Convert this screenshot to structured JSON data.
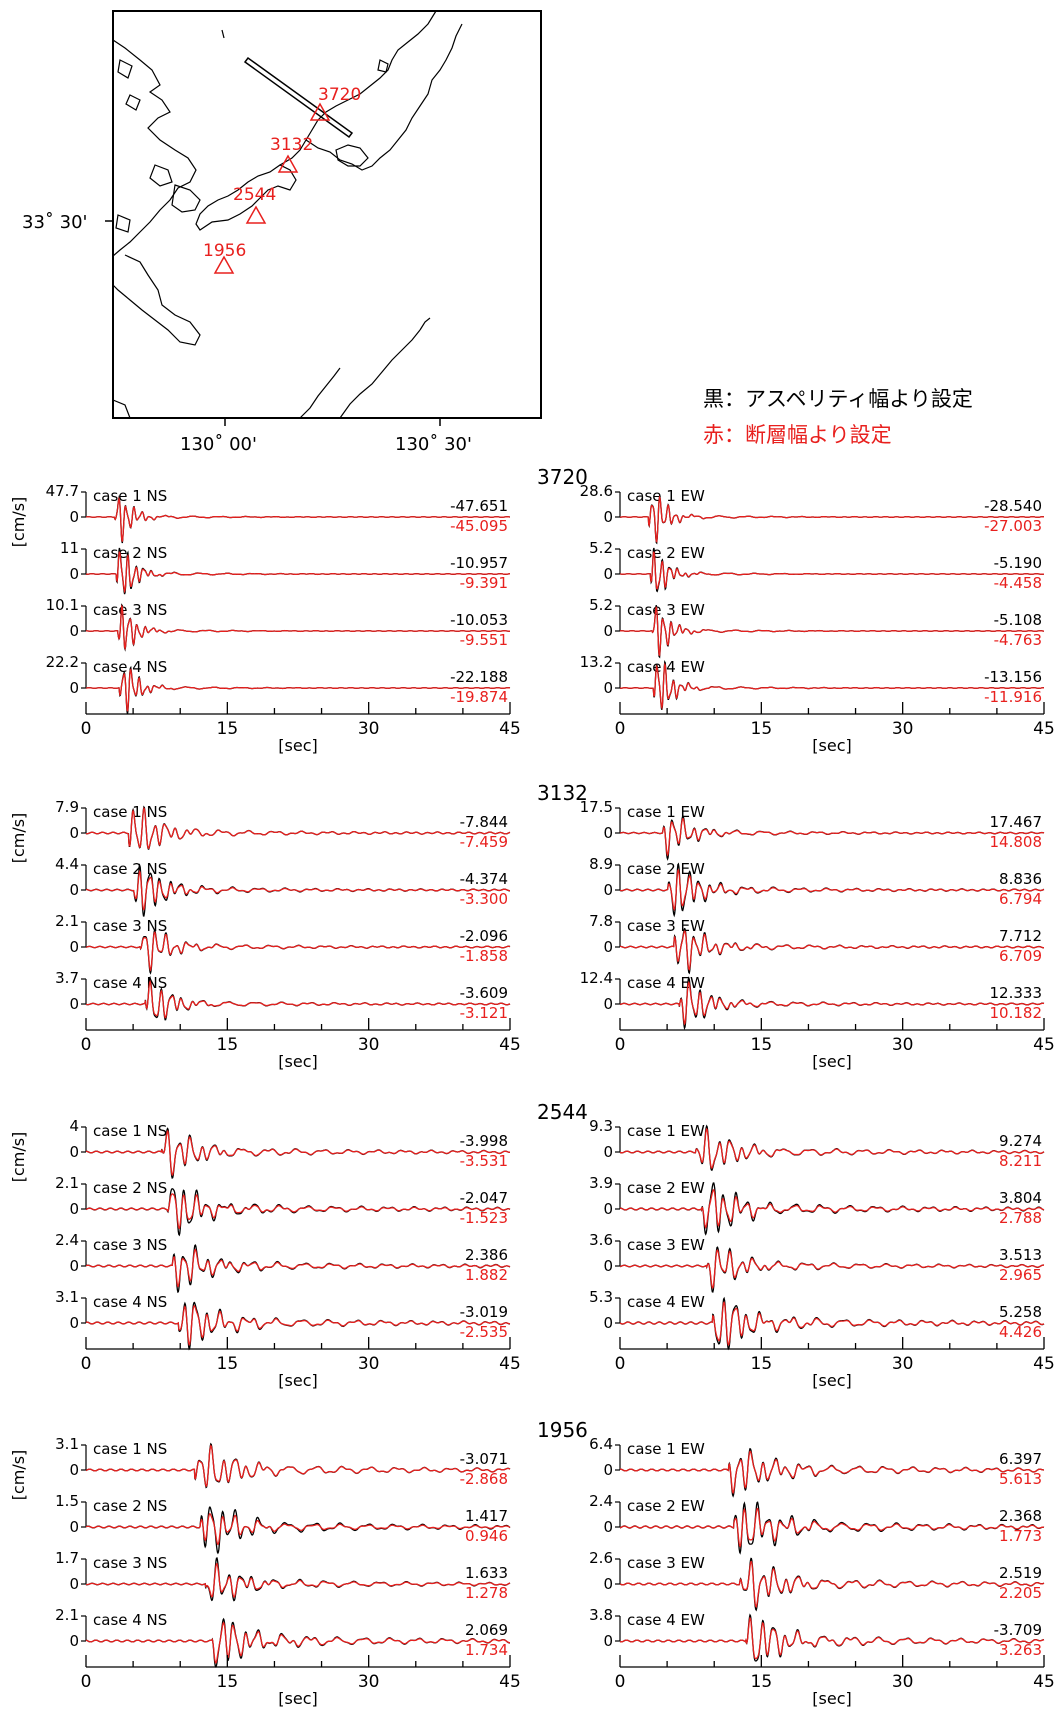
{
  "map": {
    "lat_label": "33˚ 30'",
    "lon_labels": [
      "130˚ 00'",
      "130˚ 30'"
    ],
    "stations": [
      {
        "name": "3720"
      },
      {
        "name": "3132"
      },
      {
        "name": "2544"
      },
      {
        "name": "1956"
      }
    ]
  },
  "legend": {
    "black": "黒：アスペリティ幅より設定",
    "red": "赤：断層幅より設定",
    "black_color": "#000000",
    "red_color": "#e8201e"
  },
  "axis": {
    "ylabel": "[cm/s]",
    "xlabel": "[sec]",
    "xticks": [
      "0",
      "15",
      "30",
      "45"
    ],
    "xlim": [
      0,
      45
    ]
  },
  "chart_data": [
    {
      "type": "line",
      "station": "3720",
      "component": "NS",
      "traces": [
        {
          "case": "case 1 NS",
          "scale": "47.7",
          "black_peak": "-47.651",
          "red_peak": "-45.095"
        },
        {
          "case": "case 2 NS",
          "scale": "11",
          "black_peak": "-10.957",
          "red_peak": "-9.391"
        },
        {
          "case": "case 3 NS",
          "scale": "10.1",
          "black_peak": "-10.053",
          "red_peak": "-9.551"
        },
        {
          "case": "case 4 NS",
          "scale": "22.2",
          "black_peak": "-22.188",
          "red_peak": "-19.874"
        }
      ]
    },
    {
      "type": "line",
      "station": "3720",
      "component": "EW",
      "traces": [
        {
          "case": "case 1 EW",
          "scale": "28.6",
          "black_peak": "-28.540",
          "red_peak": "-27.003"
        },
        {
          "case": "case 2 EW",
          "scale": "5.2",
          "black_peak": "-5.190",
          "red_peak": "-4.458"
        },
        {
          "case": "case 3 EW",
          "scale": "5.2",
          "black_peak": "-5.108",
          "red_peak": "-4.763"
        },
        {
          "case": "case 4 EW",
          "scale": "13.2",
          "black_peak": "-13.156",
          "red_peak": "-11.916"
        }
      ]
    },
    {
      "type": "line",
      "station": "3132",
      "component": "NS",
      "traces": [
        {
          "case": "case 1 NS",
          "scale": "7.9",
          "black_peak": "-7.844",
          "red_peak": "-7.459"
        },
        {
          "case": "case 2 NS",
          "scale": "4.4",
          "black_peak": "-4.374",
          "red_peak": "-3.300"
        },
        {
          "case": "case 3 NS",
          "scale": "2.1",
          "black_peak": "-2.096",
          "red_peak": "-1.858"
        },
        {
          "case": "case 4 NS",
          "scale": "3.7",
          "black_peak": "-3.609",
          "red_peak": "-3.121"
        }
      ]
    },
    {
      "type": "line",
      "station": "3132",
      "component": "EW",
      "traces": [
        {
          "case": "case 1 EW",
          "scale": "17.5",
          "black_peak": "17.467",
          "red_peak": "14.808"
        },
        {
          "case": "case 2 EW",
          "scale": "8.9",
          "black_peak": "8.836",
          "red_peak": "6.794"
        },
        {
          "case": "case 3 EW",
          "scale": "7.8",
          "black_peak": "7.712",
          "red_peak": "6.709"
        },
        {
          "case": "case 4 EW",
          "scale": "12.4",
          "black_peak": "12.333",
          "red_peak": "10.182"
        }
      ]
    },
    {
      "type": "line",
      "station": "2544",
      "component": "NS",
      "traces": [
        {
          "case": "case 1 NS",
          "scale": "4",
          "black_peak": "-3.998",
          "red_peak": "-3.531"
        },
        {
          "case": "case 2 NS",
          "scale": "2.1",
          "black_peak": "-2.047",
          "red_peak": "-1.523"
        },
        {
          "case": "case 3 NS",
          "scale": "2.4",
          "black_peak": "2.386",
          "red_peak": "1.882"
        },
        {
          "case": "case 4 NS",
          "scale": "3.1",
          "black_peak": "-3.019",
          "red_peak": "-2.535"
        }
      ]
    },
    {
      "type": "line",
      "station": "2544",
      "component": "EW",
      "traces": [
        {
          "case": "case 1 EW",
          "scale": "9.3",
          "black_peak": "9.274",
          "red_peak": "8.211"
        },
        {
          "case": "case 2 EW",
          "scale": "3.9",
          "black_peak": "3.804",
          "red_peak": "2.788"
        },
        {
          "case": "case 3 EW",
          "scale": "3.6",
          "black_peak": "3.513",
          "red_peak": "2.965"
        },
        {
          "case": "case 4 EW",
          "scale": "5.3",
          "black_peak": "5.258",
          "red_peak": "4.426"
        }
      ]
    },
    {
      "type": "line",
      "station": "1956",
      "component": "NS",
      "traces": [
        {
          "case": "case 1 NS",
          "scale": "3.1",
          "black_peak": "-3.071",
          "red_peak": "-2.868"
        },
        {
          "case": "case 2 NS",
          "scale": "1.5",
          "black_peak": "1.417",
          "red_peak": "0.946"
        },
        {
          "case": "case 3 NS",
          "scale": "1.7",
          "black_peak": "1.633",
          "red_peak": "1.278"
        },
        {
          "case": "case 4 NS",
          "scale": "2.1",
          "black_peak": "2.069",
          "red_peak": "1.734"
        }
      ]
    },
    {
      "type": "line",
      "station": "1956",
      "component": "EW",
      "traces": [
        {
          "case": "case 1 EW",
          "scale": "6.4",
          "black_peak": "6.397",
          "red_peak": "5.613"
        },
        {
          "case": "case 2 EW",
          "scale": "2.4",
          "black_peak": "2.368",
          "red_peak": "1.773"
        },
        {
          "case": "case 3 EW",
          "scale": "2.6",
          "black_peak": "2.519",
          "red_peak": "2.205"
        },
        {
          "case": "case 4 EW",
          "scale": "3.8",
          "black_peak": "-3.709",
          "red_peak": "3.263"
        }
      ]
    }
  ]
}
